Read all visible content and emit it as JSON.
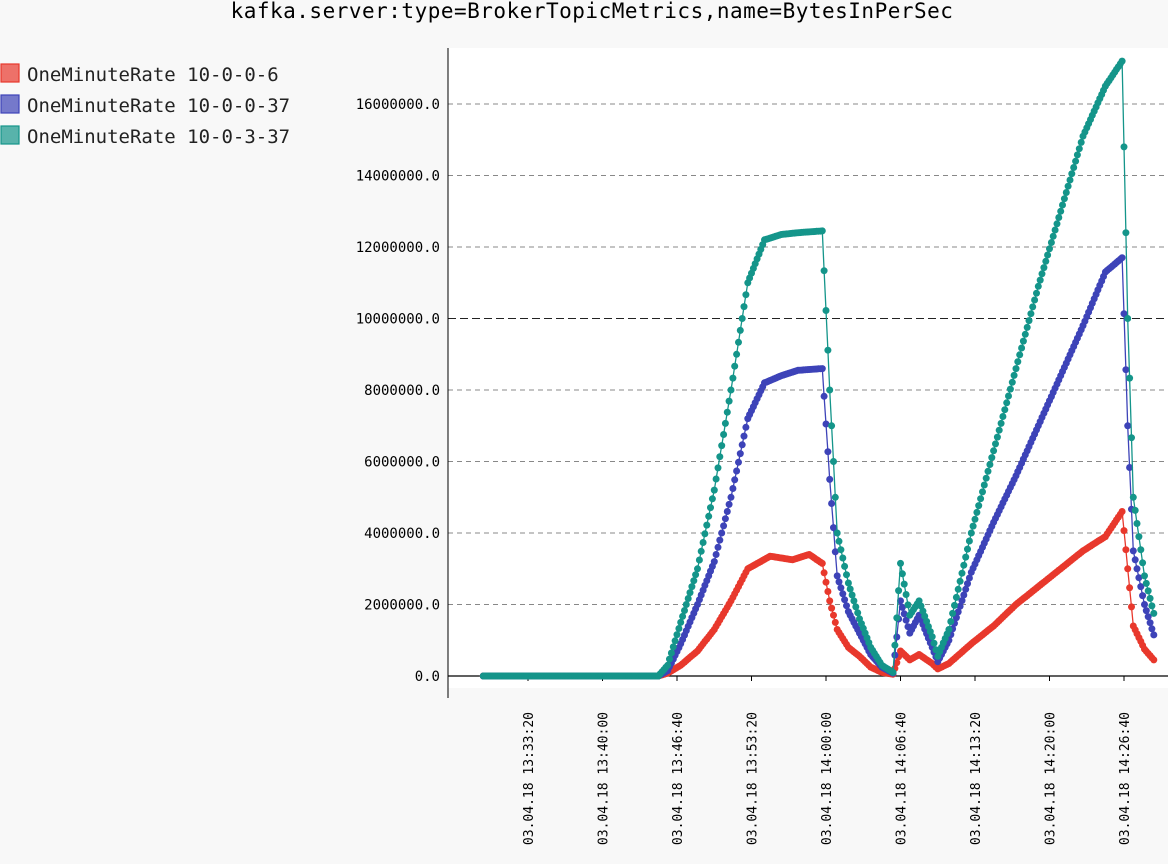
{
  "chart_data": {
    "type": "line",
    "title": "kafka.server:type=BrokerTopicMetrics,name=BytesInPerSec",
    "xlabel": "",
    "ylabel": "",
    "x_range": [
      "03.04.18 13:29:20",
      "03.04.18 14:30:10"
    ],
    "ylim": [
      0,
      17500000
    ],
    "y_ticks": [
      0,
      2000000,
      4000000,
      6000000,
      8000000,
      10000000,
      12000000,
      14000000,
      16000000
    ],
    "y_tick_labels": [
      "0.0",
      "2000000.0",
      "4000000.0",
      "6000000.0",
      "8000000.0",
      "10000000.0",
      "12000000.0",
      "14000000.0",
      "16000000.0"
    ],
    "x_ticks": [
      "03.04.18 13:33:20",
      "03.04.18 13:40:00",
      "03.04.18 13:46:40",
      "03.04.18 13:53:20",
      "03.04.18 14:00:00",
      "03.04.18 14:06:40",
      "03.04.18 14:13:20",
      "03.04.18 14:20:00",
      "03.04.18 14:26:40"
    ],
    "grid": "horizontal-dashed",
    "legend_position": "top-left",
    "series": [
      {
        "name": "OneMinuteRate 10-0-0-6",
        "color": "#e8382c",
        "points": [
          [
            "03.04.18 13:29:20",
            0
          ],
          [
            "03.04.18 13:45:00",
            0
          ],
          [
            "03.04.18 13:45:50",
            80000
          ],
          [
            "03.04.18 13:47:00",
            300000
          ],
          [
            "03.04.18 13:48:30",
            700000
          ],
          [
            "03.04.18 13:50:00",
            1300000
          ],
          [
            "03.04.18 13:51:30",
            2100000
          ],
          [
            "03.04.18 13:53:00",
            3000000
          ],
          [
            "03.04.18 13:55:00",
            3350000
          ],
          [
            "03.04.18 13:57:00",
            3250000
          ],
          [
            "03.04.18 13:58:30",
            3400000
          ],
          [
            "03.04.18 13:59:40",
            3150000
          ],
          [
            "03.04.18 14:00:20",
            2100000
          ],
          [
            "03.04.18 14:01:00",
            1300000
          ],
          [
            "03.04.18 14:02:00",
            800000
          ],
          [
            "03.04.18 14:03:00",
            550000
          ],
          [
            "03.04.18 14:04:00",
            250000
          ],
          [
            "03.04.18 14:05:00",
            100000
          ],
          [
            "03.04.18 14:06:00",
            50000
          ],
          [
            "03.04.18 14:06:40",
            700000
          ],
          [
            "03.04.18 14:07:30",
            450000
          ],
          [
            "03.04.18 14:08:20",
            600000
          ],
          [
            "03.04.18 14:09:30",
            350000
          ],
          [
            "03.04.18 14:10:00",
            200000
          ],
          [
            "03.04.18 14:11:00",
            350000
          ],
          [
            "03.04.18 14:13:00",
            900000
          ],
          [
            "03.04.18 14:15:00",
            1400000
          ],
          [
            "03.04.18 14:17:00",
            2000000
          ],
          [
            "03.04.18 14:19:00",
            2500000
          ],
          [
            "03.04.18 14:21:00",
            3000000
          ],
          [
            "03.04.18 14:23:00",
            3500000
          ],
          [
            "03.04.18 14:25:00",
            3900000
          ],
          [
            "03.04.18 14:26:30",
            4600000
          ],
          [
            "03.04.18 14:27:00",
            3000000
          ],
          [
            "03.04.18 14:27:30",
            1400000
          ],
          [
            "03.04.18 14:28:30",
            750000
          ],
          [
            "03.04.18 14:29:20",
            450000
          ]
        ]
      },
      {
        "name": "OneMinuteRate 10-0-0-37",
        "color": "#3d43b8",
        "points": [
          [
            "03.04.18 13:29:20",
            0
          ],
          [
            "03.04.18 13:45:00",
            0
          ],
          [
            "03.04.18 13:45:50",
            150000
          ],
          [
            "03.04.18 13:47:00",
            900000
          ],
          [
            "03.04.18 13:48:30",
            2000000
          ],
          [
            "03.04.18 13:50:00",
            3200000
          ],
          [
            "03.04.18 13:51:30",
            5000000
          ],
          [
            "03.04.18 13:53:00",
            7200000
          ],
          [
            "03.04.18 13:54:30",
            8200000
          ],
          [
            "03.04.18 13:56:00",
            8400000
          ],
          [
            "03.04.18 13:57:30",
            8550000
          ],
          [
            "03.04.18 13:59:40",
            8600000
          ],
          [
            "03.04.18 14:00:20",
            5500000
          ],
          [
            "03.04.18 14:01:00",
            2800000
          ],
          [
            "03.04.18 14:02:00",
            1800000
          ],
          [
            "03.04.18 14:03:00",
            1200000
          ],
          [
            "03.04.18 14:04:00",
            600000
          ],
          [
            "03.04.18 14:05:00",
            250000
          ],
          [
            "03.04.18 14:06:00",
            80000
          ],
          [
            "03.04.18 14:06:40",
            2100000
          ],
          [
            "03.04.18 14:07:30",
            1200000
          ],
          [
            "03.04.18 14:08:20",
            1700000
          ],
          [
            "03.04.18 14:09:30",
            800000
          ],
          [
            "03.04.18 14:10:00",
            400000
          ],
          [
            "03.04.18 14:11:00",
            1000000
          ],
          [
            "03.04.18 14:13:00",
            2900000
          ],
          [
            "03.04.18 14:15:00",
            4300000
          ],
          [
            "03.04.18 14:17:00",
            5600000
          ],
          [
            "03.04.18 14:19:00",
            7000000
          ],
          [
            "03.04.18 14:21:00",
            8400000
          ],
          [
            "03.04.18 14:23:00",
            9800000
          ],
          [
            "03.04.18 14:25:00",
            11300000
          ],
          [
            "03.04.18 14:26:30",
            11700000
          ],
          [
            "03.04.18 14:27:00",
            7000000
          ],
          [
            "03.04.18 14:27:30",
            3500000
          ],
          [
            "03.04.18 14:28:30",
            2000000
          ],
          [
            "03.04.18 14:29:20",
            1150000
          ]
        ]
      },
      {
        "name": "OneMinuteRate 10-0-3-37",
        "color": "#14958a",
        "points": [
          [
            "03.04.18 13:29:20",
            0
          ],
          [
            "03.04.18 13:45:00",
            0
          ],
          [
            "03.04.18 13:45:50",
            300000
          ],
          [
            "03.04.18 13:47:00",
            1500000
          ],
          [
            "03.04.18 13:48:30",
            3000000
          ],
          [
            "03.04.18 13:50:00",
            5200000
          ],
          [
            "03.04.18 13:51:30",
            8000000
          ],
          [
            "03.04.18 13:53:00",
            11000000
          ],
          [
            "03.04.18 13:54:30",
            12200000
          ],
          [
            "03.04.18 13:56:00",
            12350000
          ],
          [
            "03.04.18 13:57:30",
            12400000
          ],
          [
            "03.04.18 13:59:40",
            12450000
          ],
          [
            "03.04.18 14:00:20",
            8000000
          ],
          [
            "03.04.18 14:01:00",
            4000000
          ],
          [
            "03.04.18 14:02:00",
            2600000
          ],
          [
            "03.04.18 14:03:00",
            1600000
          ],
          [
            "03.04.18 14:04:00",
            800000
          ],
          [
            "03.04.18 14:05:00",
            300000
          ],
          [
            "03.04.18 14:06:00",
            100000
          ],
          [
            "03.04.18 14:06:40",
            3150000
          ],
          [
            "03.04.18 14:07:30",
            1700000
          ],
          [
            "03.04.18 14:08:20",
            2100000
          ],
          [
            "03.04.18 14:09:30",
            1100000
          ],
          [
            "03.04.18 14:10:00",
            550000
          ],
          [
            "03.04.18 14:11:00",
            1300000
          ],
          [
            "03.04.18 14:13:00",
            4000000
          ],
          [
            "03.04.18 14:15:00",
            6300000
          ],
          [
            "03.04.18 14:17:00",
            8600000
          ],
          [
            "03.04.18 14:19:00",
            10900000
          ],
          [
            "03.04.18 14:21:00",
            13000000
          ],
          [
            "03.04.18 14:23:00",
            15100000
          ],
          [
            "03.04.18 14:25:00",
            16500000
          ],
          [
            "03.04.18 14:26:30",
            17200000
          ],
          [
            "03.04.18 14:27:00",
            10000000
          ],
          [
            "03.04.18 14:27:30",
            5000000
          ],
          [
            "03.04.18 14:28:30",
            2800000
          ],
          [
            "03.04.18 14:29:20",
            1750000
          ]
        ]
      }
    ]
  }
}
